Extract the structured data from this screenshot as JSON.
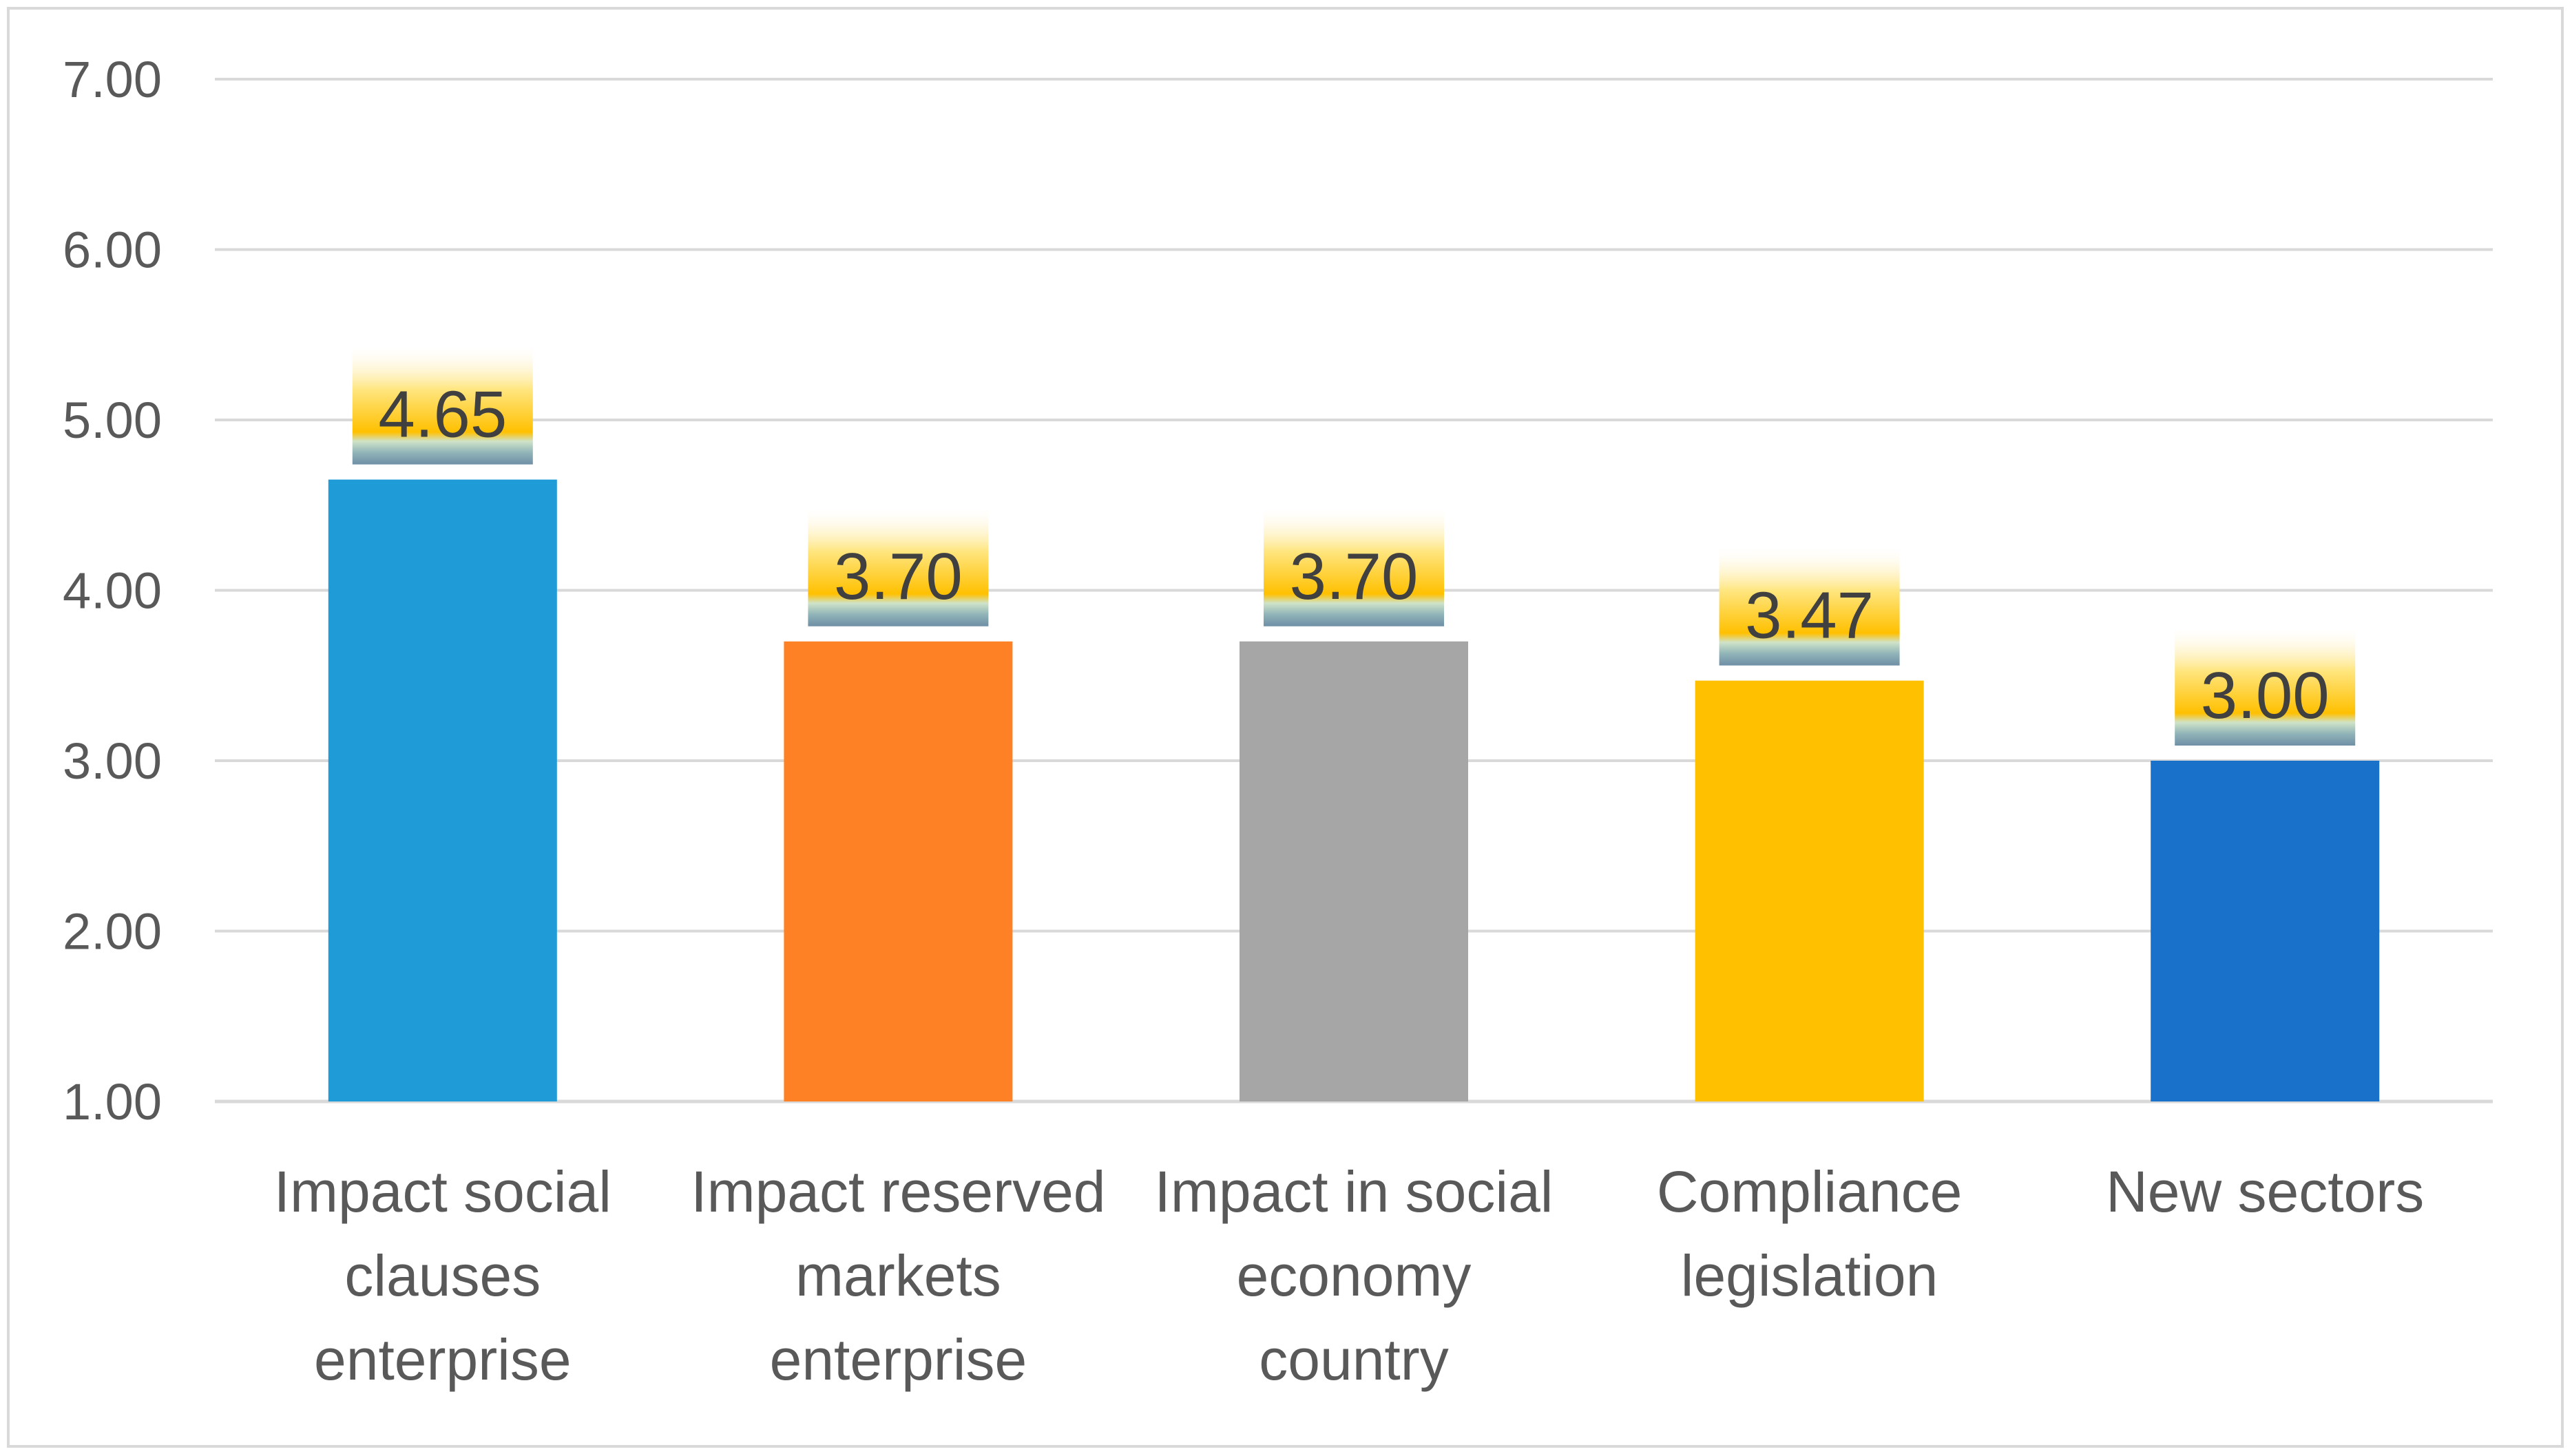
{
  "chart_data": {
    "type": "bar",
    "title": "",
    "xlabel": "",
    "ylabel": "",
    "ylim": [
      1,
      7
    ],
    "yticks": [
      "1.00",
      "2.00",
      "3.00",
      "4.00",
      "5.00",
      "6.00",
      "7.00"
    ],
    "grid": true,
    "legend": "none",
    "categories": [
      [
        "Impact social",
        "clauses",
        "enterprise"
      ],
      [
        "Impact reserved",
        "markets",
        "enterprise"
      ],
      [
        "Impact in social",
        "economy",
        "country"
      ],
      [
        "Compliance",
        "legislation"
      ],
      [
        "New sectors"
      ]
    ],
    "values": [
      4.65,
      3.7,
      3.7,
      3.47,
      3.0
    ],
    "data_labels": [
      "4.65",
      "3.70",
      "3.70",
      "3.47",
      "3.00"
    ],
    "colors": [
      "#1f9bd7",
      "#fe8125",
      "#a6a6a6",
      "#ffc000",
      "#1a71c9"
    ],
    "gridline_color": "#d9d9d9",
    "label_badge_color": "#ffc000"
  }
}
